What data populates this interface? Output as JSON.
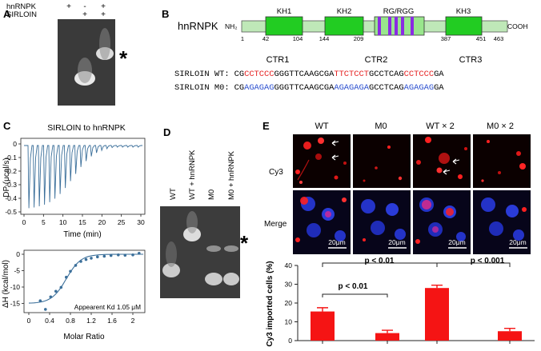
{
  "panels": {
    "A": {
      "label": "A",
      "rows": [
        {
          "name": "hnRNPK",
          "marks": [
            "+",
            "-",
            "+"
          ]
        },
        {
          "name": "SIRLOIN",
          "marks": [
            "",
            "+",
            "+"
          ]
        }
      ],
      "asterisk": "*"
    },
    "B": {
      "label": "B",
      "protein": "hnRNPK",
      "nh2": "NH₂",
      "cooh": "COOH",
      "domains": [
        "KH1",
        "KH2",
        "RG/RGG",
        "KH3"
      ],
      "positions": [
        "1",
        "42",
        "104",
        "144",
        "209",
        "387",
        "451",
        "463"
      ],
      "ctr_labels": [
        "CTR1",
        "CTR2",
        "CTR3"
      ],
      "wt": {
        "name": "SIRLOIN WT:",
        "segments": [
          "CG",
          "CCTCCC",
          "GGGTTCAAGCGA",
          "TTCTCCT",
          "GCCTCAG",
          "CCTCCC",
          "GA"
        ]
      },
      "m0": {
        "name": "SIRLOIN M0:",
        "segments": [
          "CG",
          "AGAGAG",
          "GGGTTCAAGCGA",
          "AGAGAGA",
          "GCCTCAG",
          "AGAGAG",
          "GA"
        ]
      }
    },
    "C": {
      "label": "C",
      "title": "SIRLOIN  to hnRNPK",
      "top": {
        "ylabel": "DP (μcal/s)",
        "xlabel": "Time (min)",
        "yticks": [
          "0",
          "-0.1",
          "-0.2",
          "-0.3",
          "-0.4",
          "-0.5"
        ],
        "xticks": [
          "0",
          "5",
          "10",
          "15",
          "20",
          "25",
          "30"
        ]
      },
      "bottom": {
        "ylabel": "ΔH (kcal/mol)",
        "xlabel": "Molar Ratio",
        "yticks": [
          "0",
          "-5",
          "-10",
          "-15"
        ],
        "xticks": [
          "0",
          "0.4",
          "0.8",
          "1.2",
          "1.6",
          "2"
        ],
        "annotation": "Appearent Kd 1.05 μM"
      }
    },
    "D": {
      "label": "D",
      "lanes": [
        "WT",
        "WT + hnRNPK",
        "M0",
        "M0 + hnRNPK"
      ],
      "asterisk": "*"
    },
    "E": {
      "label": "E",
      "columns": [
        "WT",
        "M0",
        "WT × 2",
        "M0 × 2"
      ],
      "row_labels": [
        "Cy3",
        "Merge"
      ],
      "scale_bar": "20μm",
      "comparisons": [
        "p < 0.01",
        "p < 0.01",
        "p < 0.001"
      ]
    }
  },
  "chart_data": {
    "type": "bar",
    "categories": [
      "",
      "",
      "",
      ""
    ],
    "series": [
      {
        "values": [
          15.5,
          4.0,
          28.0,
          5.0
        ]
      }
    ],
    "errors": [
      2.0,
      1.5,
      1.5,
      1.5
    ],
    "title": "",
    "xlabel": "",
    "ylabel": "Cy3 imported cells (%)",
    "ylim": [
      0,
      40
    ],
    "yticks": [
      "0",
      "10",
      "20",
      "30",
      "40"
    ],
    "bar_color": "#f51414",
    "grid": false
  }
}
